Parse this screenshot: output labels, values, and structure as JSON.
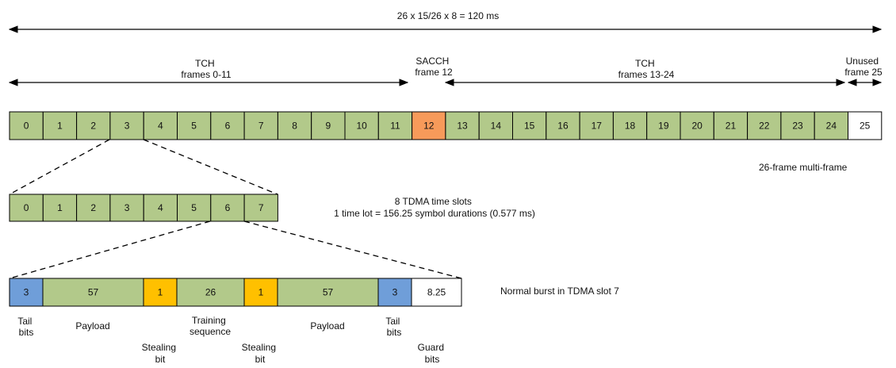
{
  "total_span_label": "26 x 15/26 x 8 = 120 ms",
  "segments": {
    "tch_left": [
      "TCH",
      "frames 0-11"
    ],
    "sacch": [
      "SACCH",
      "frame 12"
    ],
    "tch_right": [
      "TCH",
      "frames 13-24"
    ],
    "unused": [
      "Unused",
      "frame 25"
    ]
  },
  "multiframe": {
    "cells": [
      "0",
      "1",
      "2",
      "3",
      "4",
      "5",
      "6",
      "7",
      "8",
      "9",
      "10",
      "11",
      "12",
      "13",
      "14",
      "15",
      "16",
      "17",
      "18",
      "19",
      "20",
      "21",
      "22",
      "23",
      "24",
      "25"
    ],
    "kinds": [
      "tch",
      "tch",
      "tch",
      "tch",
      "tch",
      "tch",
      "tch",
      "tch",
      "tch",
      "tch",
      "tch",
      "tch",
      "sacch",
      "tch",
      "tch",
      "tch",
      "tch",
      "tch",
      "tch",
      "tch",
      "tch",
      "tch",
      "tch",
      "tch",
      "tch",
      "unused"
    ],
    "caption": "26-frame multi-frame"
  },
  "tdma": {
    "cells": [
      "0",
      "1",
      "2",
      "3",
      "4",
      "5",
      "6",
      "7"
    ],
    "caption": [
      "8 TDMA time slots",
      "1 time lot = 156.25 symbol durations (0.577 ms)"
    ]
  },
  "burst": {
    "cells": [
      "3",
      "57",
      "1",
      "26",
      "1",
      "57",
      "3",
      "8.25"
    ],
    "kinds": [
      "tail",
      "payload",
      "stealing",
      "training",
      "stealing",
      "payload",
      "tail",
      "guard"
    ],
    "caption": "Normal burst in TDMA slot 7",
    "labels_upper": [
      [
        "Tail",
        "bits"
      ],
      [
        "Payload"
      ],
      [
        "Training",
        "sequence"
      ],
      [
        "Payload"
      ],
      [
        "Tail",
        "bits"
      ]
    ],
    "labels_lower": [
      [
        "Stealing",
        "bit"
      ],
      [
        "Stealing",
        "bit"
      ],
      [
        "Guard",
        "bits"
      ]
    ]
  },
  "colors": {
    "tch": "#b2c98a",
    "sacch": "#f79a5a",
    "unused": "#ffffff",
    "tail": "#6f9ed9",
    "stealing": "#ffc000",
    "guard": "#ffffff",
    "stroke": "#000000"
  }
}
